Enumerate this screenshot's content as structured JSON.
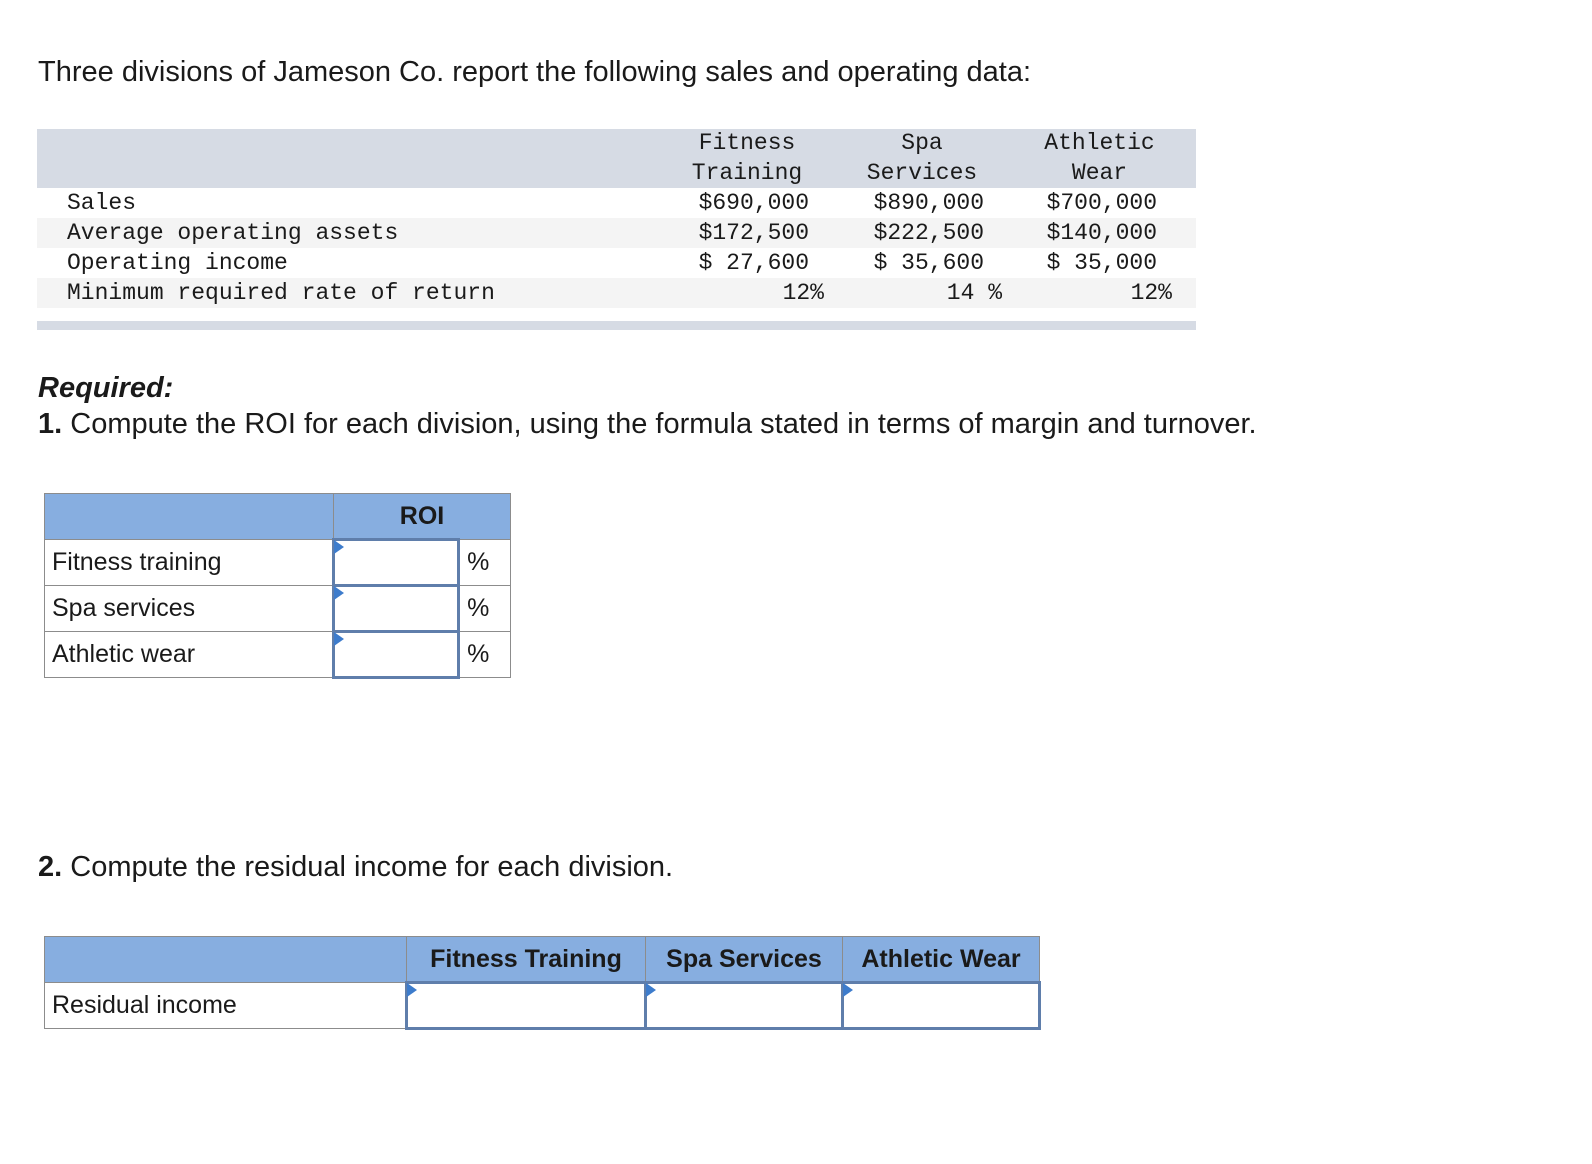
{
  "intro": "Three divisions of Jameson Co. report the following sales and operating data:",
  "data_table": {
    "headers": [
      [
        "Fitness",
        "Training"
      ],
      [
        "Spa",
        "Services"
      ],
      [
        "Athletic",
        "Wear"
      ]
    ],
    "rows": [
      {
        "label": "Sales",
        "values": [
          "$690,000",
          "$890,000",
          "$700,000"
        ]
      },
      {
        "label": "Average operating assets",
        "values": [
          "$172,500",
          "$222,500",
          "$140,000"
        ]
      },
      {
        "label": "Operating income",
        "values": [
          "$ 27,600",
          "$ 35,600",
          "$ 35,000"
        ]
      },
      {
        "label": "Minimum required rate of return",
        "values": [
          "12%",
          "14 %",
          "12%"
        ]
      }
    ]
  },
  "required": {
    "heading": "Required:",
    "q1_num": "1.",
    "q1_text": " Compute the ROI for each division, using the formula stated in terms of margin and turnover.",
    "q2_num": "2.",
    "q2_text": " Compute the residual income for each division."
  },
  "roi_table": {
    "header": "ROI",
    "unit": "%",
    "rows": [
      "Fitness training",
      "Spa services",
      "Athletic wear"
    ]
  },
  "ri_table": {
    "headers": [
      "Fitness Training",
      "Spa Services",
      "Athletic Wear"
    ],
    "row_label": "Residual income"
  }
}
